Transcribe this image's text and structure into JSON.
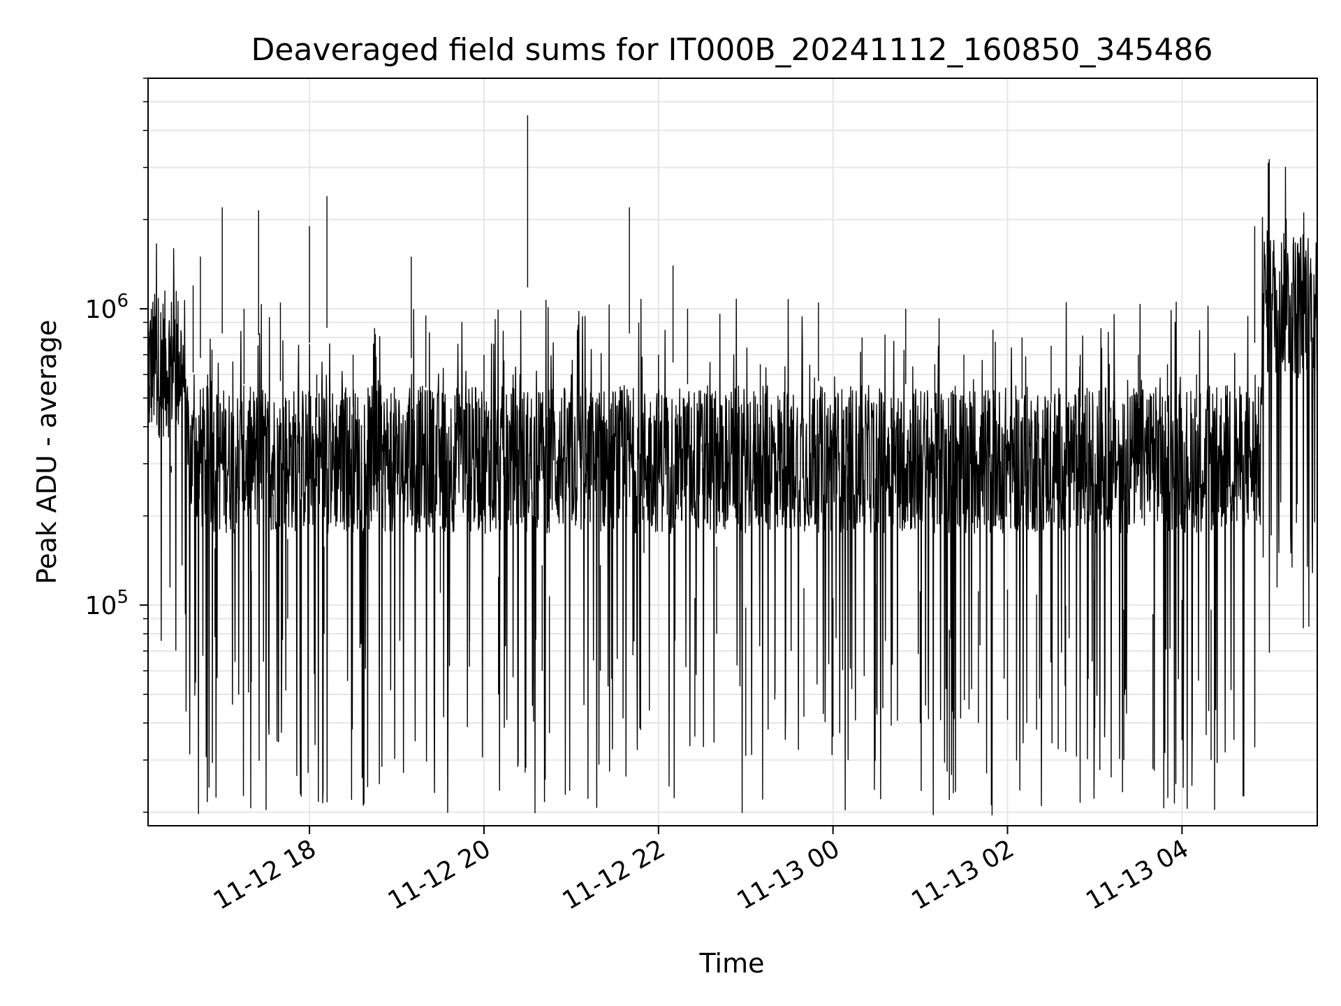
{
  "chart_data": {
    "type": "line",
    "title": "Deaveraged field sums for IT000B_20241112_160850_345486",
    "xlabel": "Time",
    "ylabel": "Peak ADU - average",
    "x_axis_type": "datetime",
    "xlim": [
      "2024-11-12 16:09",
      "2024-11-13 05:33"
    ],
    "x_ticks": [
      {
        "value": "2024-11-12 18:00",
        "label": "11-12 18"
      },
      {
        "value": "2024-11-12 20:00",
        "label": "11-12 20"
      },
      {
        "value": "2024-11-12 22:00",
        "label": "11-12 22"
      },
      {
        "value": "2024-11-13 00:00",
        "label": "11-13 00"
      },
      {
        "value": "2024-11-13 02:00",
        "label": "11-13 02"
      },
      {
        "value": "2024-11-13 04:00",
        "label": "11-13 04"
      }
    ],
    "y_scale": "log",
    "ylim": [
      18000,
      6000000
    ],
    "y_ticks": [
      {
        "value": 100000,
        "base": "10",
        "exp": "5"
      },
      {
        "value": 1000000,
        "base": "10",
        "exp": "6"
      }
    ],
    "grid": true,
    "line_color": "#000000",
    "grid_color": "#e6e6e6",
    "series": [
      {
        "values": [
          [
            "2024-11-12 16:10",
            550000
          ],
          [
            "2024-11-12 16:20",
            800000
          ],
          [
            "2024-11-12 16:25",
            280000
          ],
          [
            "2024-11-12 16:30",
            700000
          ],
          [
            "2024-11-12 16:40",
            1200000
          ],
          [
            "2024-11-12 16:45",
            1500000
          ],
          [
            "2024-11-12 16:50",
            600000
          ],
          [
            "2024-11-12 16:55",
            78000
          ],
          [
            "2024-11-12 17:00",
            2200000
          ],
          [
            "2024-11-12 17:10",
            220000
          ],
          [
            "2024-11-12 17:15",
            1000000
          ],
          [
            "2024-11-12 17:20",
            55000
          ],
          [
            "2024-11-12 17:25",
            2150000
          ],
          [
            "2024-11-12 17:35",
            180000
          ],
          [
            "2024-11-12 17:40",
            1050000
          ],
          [
            "2024-11-12 17:45",
            90000
          ],
          [
            "2024-11-12 17:50",
            400000
          ],
          [
            "2024-11-12 18:00",
            1900000
          ],
          [
            "2024-11-12 18:05",
            600000
          ],
          [
            "2024-11-12 18:10",
            80000
          ],
          [
            "2024-11-12 18:12",
            2400000
          ],
          [
            "2024-11-12 18:20",
            300000
          ],
          [
            "2024-11-12 18:30",
            700000
          ],
          [
            "2024-11-12 18:40",
            58000
          ],
          [
            "2024-11-12 18:50",
            350000
          ],
          [
            "2024-11-12 19:00",
            400000
          ],
          [
            "2024-11-12 19:10",
            1500000
          ],
          [
            "2024-11-12 19:20",
            950000
          ],
          [
            "2024-11-12 19:30",
            110000
          ],
          [
            "2024-11-12 19:40",
            500000
          ],
          [
            "2024-11-12 19:50",
            62000
          ],
          [
            "2024-11-12 20:00",
            700000
          ],
          [
            "2024-11-12 20:10",
            50000
          ],
          [
            "2024-11-12 20:20",
            600000
          ],
          [
            "2024-11-12 20:30",
            4500000
          ],
          [
            "2024-11-12 20:40",
            60000
          ],
          [
            "2024-11-12 20:45",
            37000
          ],
          [
            "2024-11-12 20:50",
            300000
          ],
          [
            "2024-11-12 21:00",
            600000
          ],
          [
            "2024-11-12 21:10",
            250000
          ],
          [
            "2024-11-12 21:20",
            60000
          ],
          [
            "2024-11-12 21:30",
            400000
          ],
          [
            "2024-11-12 21:40",
            2200000
          ],
          [
            "2024-11-12 21:50",
            150000
          ],
          [
            "2024-11-12 22:00",
            700000
          ],
          [
            "2024-11-12 22:10",
            1400000
          ],
          [
            "2024-11-12 22:15",
            400000
          ],
          [
            "2024-11-12 22:20",
            1000000
          ],
          [
            "2024-11-12 22:25",
            36000
          ],
          [
            "2024-11-12 22:30",
            350000
          ],
          [
            "2024-11-12 22:40",
            80000
          ],
          [
            "2024-11-12 22:50",
            500000
          ],
          [
            "2024-11-12 23:00",
            31000
          ],
          [
            "2024-11-12 23:10",
            650000
          ],
          [
            "2024-11-12 23:20",
            48000
          ],
          [
            "2024-11-12 23:30",
            400000
          ],
          [
            "2024-11-12 23:40",
            42000
          ],
          [
            "2024-11-12 23:50",
            1050000
          ],
          [
            "2024-11-13 00:00",
            36000
          ],
          [
            "2024-11-13 00:10",
            350000
          ],
          [
            "2024-11-13 00:20",
            800000
          ],
          [
            "2024-11-13 00:30",
            45000
          ],
          [
            "2024-11-13 00:40",
            500000
          ],
          [
            "2024-11-13 00:50",
            1000000
          ],
          [
            "2024-11-13 01:00",
            40000
          ],
          [
            "2024-11-13 01:10",
            650000
          ],
          [
            "2024-11-13 01:20",
            22000
          ],
          [
            "2024-11-13 01:30",
            700000
          ],
          [
            "2024-11-13 01:40",
            40000
          ],
          [
            "2024-11-13 01:50",
            850000
          ],
          [
            "2024-11-13 02:00",
            41000
          ],
          [
            "2024-11-13 02:10",
            800000
          ],
          [
            "2024-11-13 02:20",
            38000
          ],
          [
            "2024-11-13 02:30",
            750000
          ],
          [
            "2024-11-13 02:40",
            32000
          ],
          [
            "2024-11-13 02:50",
            700000
          ],
          [
            "2024-11-13 03:00",
            48000
          ],
          [
            "2024-11-13 03:10",
            650000
          ],
          [
            "2024-11-13 03:20",
            30000
          ],
          [
            "2024-11-13 03:30",
            700000
          ],
          [
            "2024-11-13 03:40",
            28000
          ],
          [
            "2024-11-13 03:50",
            650000
          ],
          [
            "2024-11-13 04:00",
            35000
          ],
          [
            "2024-11-13 04:10",
            600000
          ],
          [
            "2024-11-13 04:20",
            30000
          ],
          [
            "2024-11-13 04:30",
            550000
          ],
          [
            "2024-11-13 04:40",
            250000
          ],
          [
            "2024-11-13 04:50",
            1900000
          ],
          [
            "2024-11-13 05:00",
            3200000
          ],
          [
            "2024-11-13 05:10",
            1800000
          ],
          [
            "2024-11-13 05:20",
            1100000
          ],
          [
            "2024-11-13 05:30",
            800000
          ]
        ]
      }
    ]
  }
}
